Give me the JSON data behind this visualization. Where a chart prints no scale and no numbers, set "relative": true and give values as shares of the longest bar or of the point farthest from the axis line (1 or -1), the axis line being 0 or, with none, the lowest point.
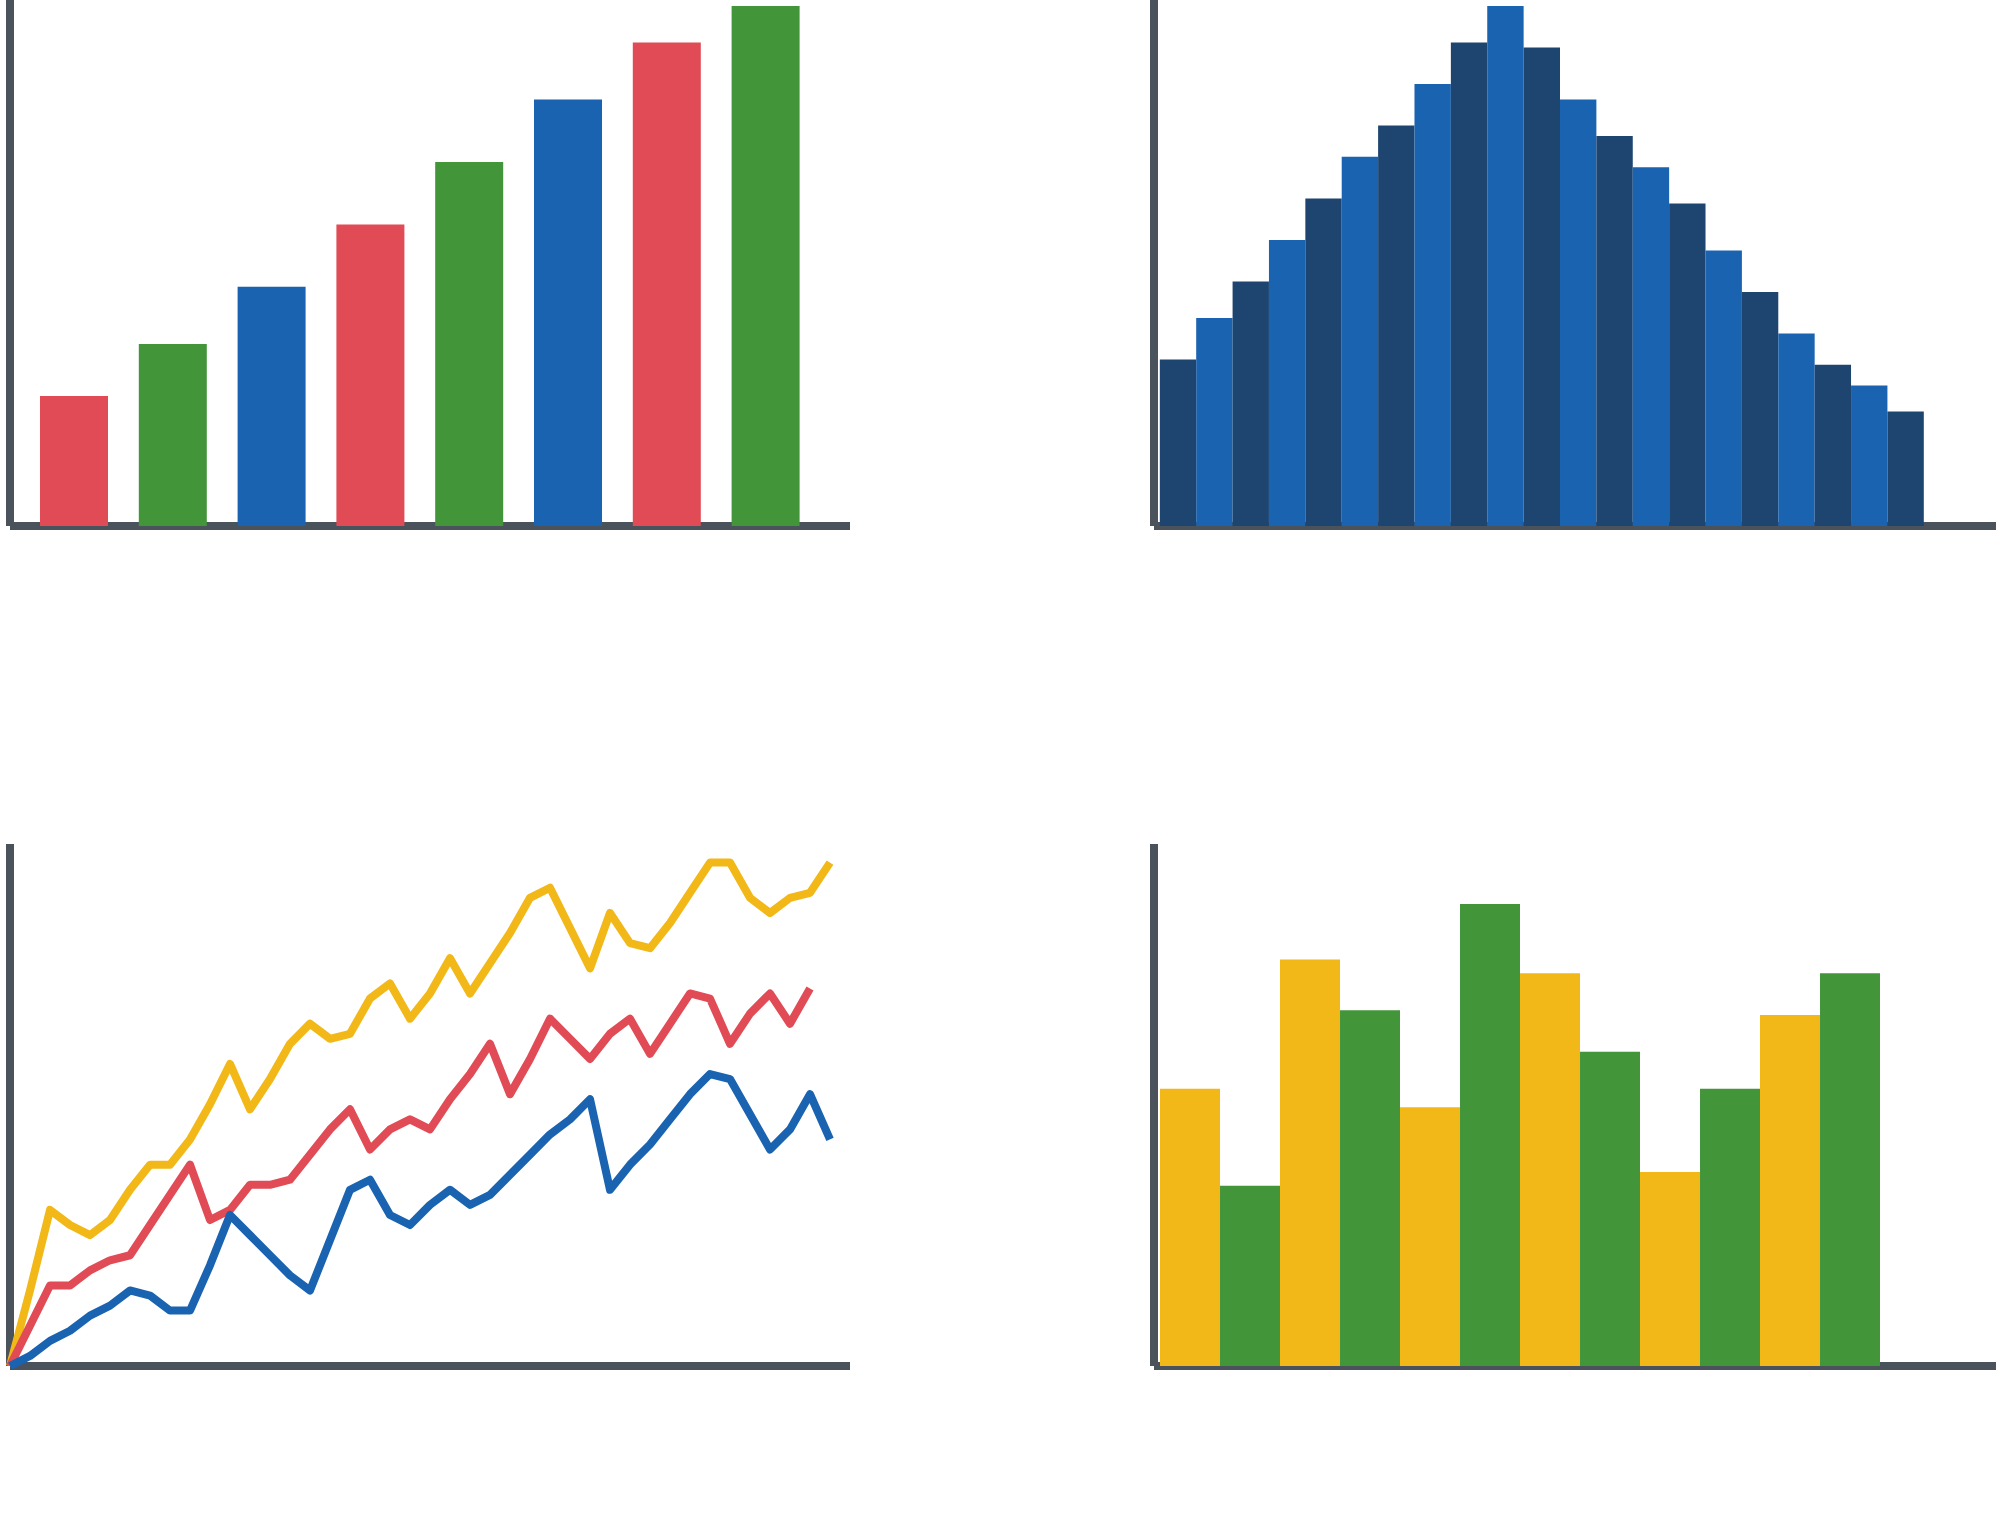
{
  "chart_data": [
    {
      "type": "bar",
      "relative": true,
      "categories": [
        null,
        null,
        null,
        null,
        null,
        null,
        null,
        null
      ],
      "values": [
        0.25,
        0.35,
        0.46,
        0.58,
        0.7,
        0.82,
        0.93,
        1.0
      ],
      "colors": [
        "#e04b56",
        "#43953a",
        "#1a63b0",
        "#e04b56",
        "#43953a",
        "#1a63b0",
        "#e04b56",
        "#43953a"
      ]
    },
    {
      "type": "bar",
      "relative": true,
      "categories": [
        null,
        null,
        null,
        null,
        null,
        null,
        null,
        null,
        null,
        null,
        null,
        null,
        null,
        null,
        null,
        null,
        null,
        null,
        null,
        null,
        null
      ],
      "values": [
        0.32,
        0.4,
        0.47,
        0.55,
        0.63,
        0.71,
        0.77,
        0.85,
        0.93,
        1.0,
        0.92,
        0.82,
        0.75,
        0.69,
        0.62,
        0.53,
        0.45,
        0.37,
        0.31,
        0.27,
        0.22
      ],
      "colors": [
        "#1e4570",
        "#1a63b0",
        "#1e4570",
        "#1a63b0",
        "#1e4570",
        "#1a63b0",
        "#1e4570",
        "#1a63b0",
        "#1e4570",
        "#1a63b0",
        "#1e4570",
        "#1a63b0",
        "#1e4570",
        "#1a63b0",
        "#1e4570",
        "#1a63b0",
        "#1e4570",
        "#1a63b0",
        "#1e4570",
        "#1a63b0",
        "#1e4570"
      ]
    },
    {
      "type": "line",
      "relative": true,
      "categories": [
        null,
        null,
        null,
        null,
        null,
        null,
        null,
        null,
        null,
        null,
        null,
        null,
        null,
        null,
        null,
        null,
        null,
        null,
        null,
        null,
        null,
        null,
        null,
        null,
        null,
        null,
        null,
        null,
        null,
        null,
        null,
        null,
        null,
        null,
        null,
        null,
        null,
        null,
        null,
        null,
        null,
        null
      ],
      "series": [
        {
          "color": "#f2b817",
          "values": [
            0,
            0.15,
            0.31,
            0.28,
            0.26,
            0.29,
            0.35,
            0.4,
            0.4,
            0.45,
            0.52,
            0.6,
            0.51,
            0.57,
            0.64,
            0.68,
            0.65,
            0.66,
            0.73,
            0.76,
            0.69,
            0.74,
            0.81,
            0.74,
            0.8,
            0.86,
            0.93,
            0.95,
            0.87,
            0.79,
            0.9,
            0.84,
            0.83,
            0.88,
            0.94,
            1.0,
            1.0,
            0.93,
            0.9,
            0.93,
            0.94,
            1.0
          ]
        },
        {
          "color": "#e04b56",
          "values": [
            0,
            0.08,
            0.16,
            0.16,
            0.19,
            0.21,
            0.22,
            0.28,
            0.34,
            0.4,
            0.29,
            0.31,
            0.36,
            0.36,
            0.37,
            0.42,
            0.47,
            0.51,
            0.43,
            0.47,
            0.49,
            0.47,
            0.53,
            0.58,
            0.64,
            0.54,
            0.61,
            0.69,
            0.65,
            0.61,
            0.66,
            0.69,
            0.62,
            0.68,
            0.74,
            0.73,
            0.64,
            0.7,
            0.74,
            0.68,
            0.75,
            null
          ]
        },
        {
          "color": "#1a63b0",
          "values": [
            0,
            0.02,
            0.05,
            0.07,
            0.1,
            0.12,
            0.15,
            0.14,
            0.11,
            0.11,
            0.2,
            0.3,
            0.26,
            0.22,
            0.18,
            0.15,
            0.25,
            0.35,
            0.37,
            0.3,
            0.28,
            0.32,
            0.35,
            0.32,
            0.34,
            0.38,
            0.42,
            0.46,
            0.49,
            0.53,
            0.35,
            0.4,
            0.44,
            0.49,
            0.54,
            0.58,
            0.57,
            0.5,
            0.43,
            0.47,
            0.54,
            0.45
          ]
        }
      ]
    },
    {
      "type": "bar",
      "relative": true,
      "categories": [
        null,
        null,
        null,
        null,
        null,
        null,
        null,
        null,
        null,
        null,
        null,
        null
      ],
      "values": [
        0.6,
        0.39,
        0.88,
        0.77,
        0.56,
        1.0,
        0.85,
        0.68,
        0.42,
        0.6,
        0.76,
        0.85
      ],
      "colors": [
        "#f2b817",
        "#43953a",
        "#f2b817",
        "#43953a",
        "#f2b817",
        "#43953a",
        "#f2b817",
        "#43953a",
        "#f2b817",
        "#43953a",
        "#f2b817",
        "#43953a"
      ]
    }
  ]
}
